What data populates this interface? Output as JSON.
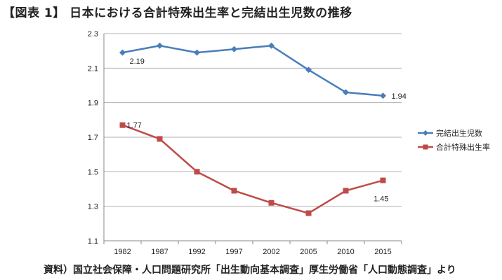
{
  "page": {
    "title": "【図表 1】 日本における合計特殊出生率と完結出生児数の推移",
    "source": "資料）国立社会保障・人口問題研究所「出生動向基本調査」厚生労働省「人口動態調査」より"
  },
  "chart_data": {
    "type": "line",
    "categories": [
      "1982",
      "1987",
      "1992",
      "1997",
      "2002",
      "2005",
      "2010",
      "2015"
    ],
    "ylim": [
      1.1,
      2.3
    ],
    "yticks": [
      "1.1",
      "1.3",
      "1.5",
      "1.7",
      "1.9",
      "2.1",
      "2.3"
    ],
    "grid": true,
    "legend_position": "right",
    "series": [
      {
        "name": "完結出生児数",
        "color": "#4a7ebb",
        "marker": "diamond",
        "values": [
          2.19,
          2.23,
          2.19,
          2.21,
          2.23,
          2.09,
          1.96,
          1.94
        ],
        "labels": [
          {
            "index": 0,
            "text": "2.19"
          },
          {
            "index": 7,
            "text": "1.94"
          }
        ]
      },
      {
        "name": "合計特殊出生率",
        "color": "#be4b48",
        "marker": "square",
        "values": [
          1.77,
          1.69,
          1.5,
          1.39,
          1.32,
          1.26,
          1.39,
          1.45
        ],
        "labels": [
          {
            "index": 0,
            "text": "1.77"
          },
          {
            "index": 7,
            "text": "1.45"
          }
        ]
      }
    ]
  }
}
